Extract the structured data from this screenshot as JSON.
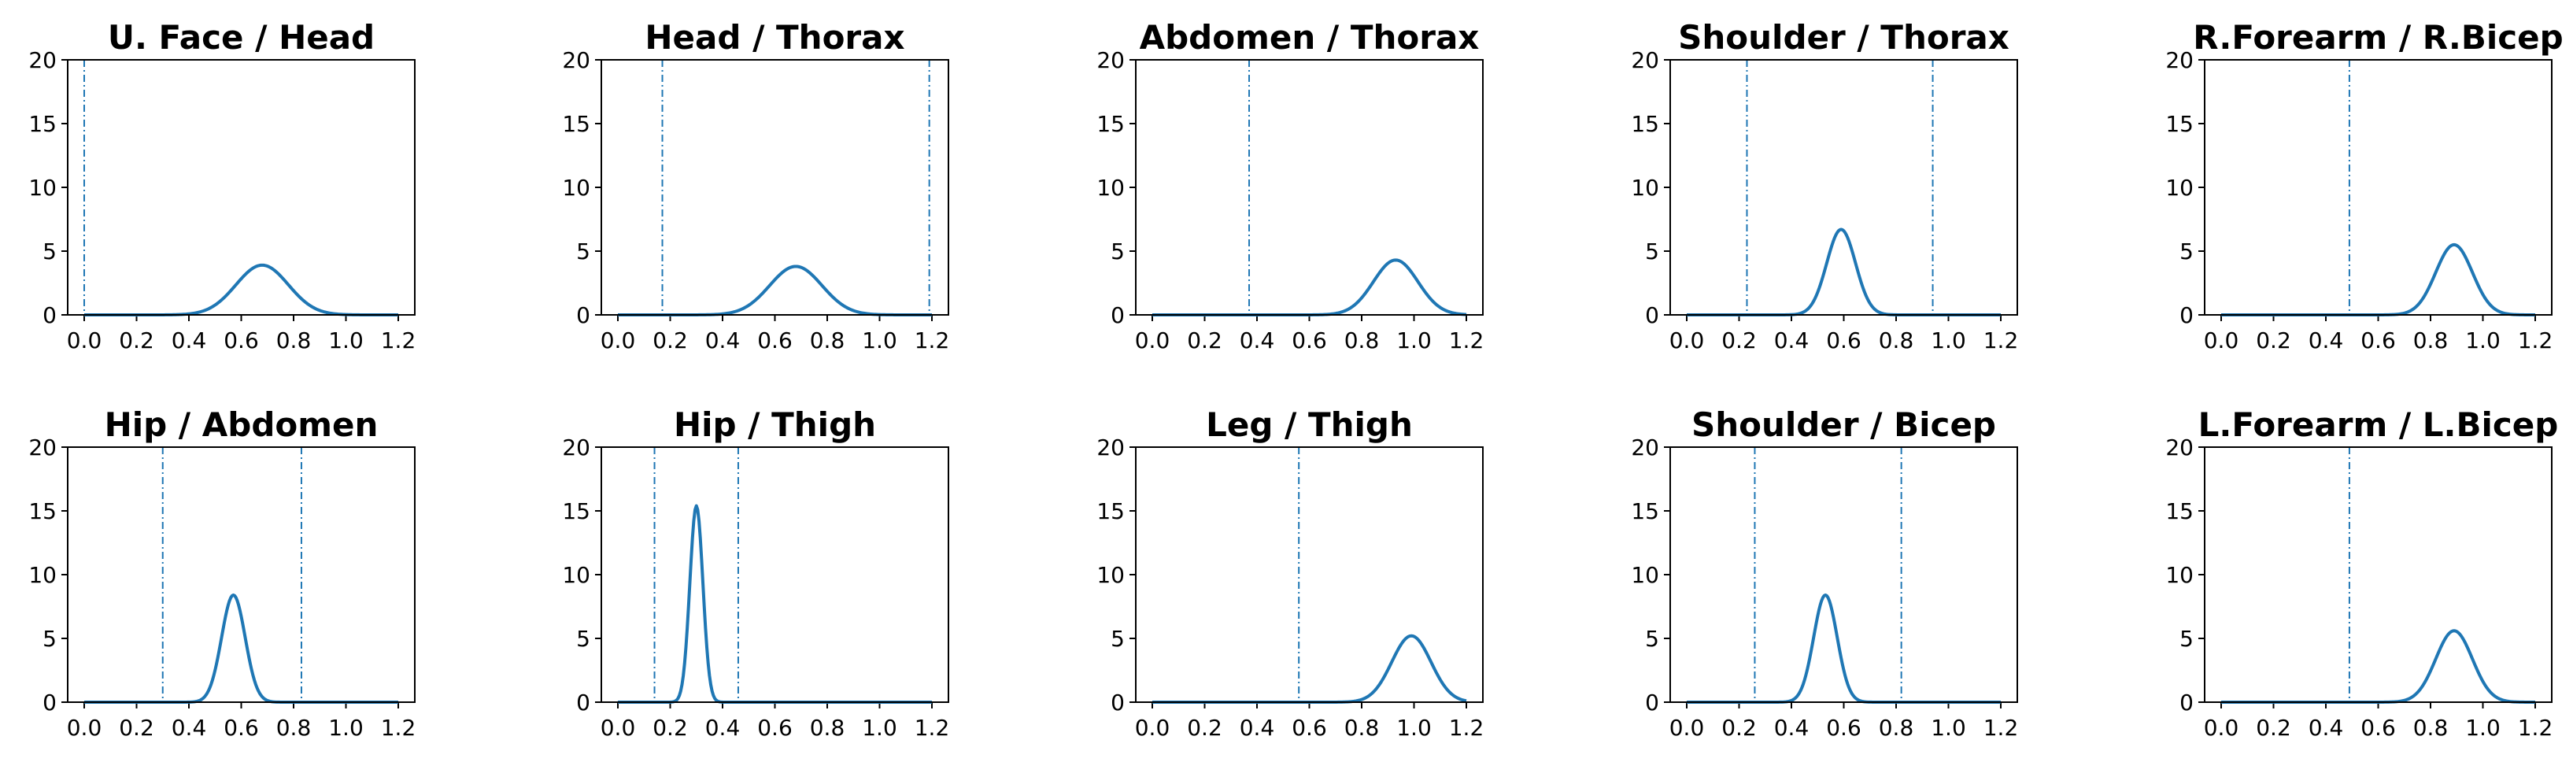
{
  "figure": {
    "background": "#ffffff",
    "curve_color": "#1f77b4",
    "vline_color": "#1f77b4"
  },
  "chart_data": [
    {
      "type": "line",
      "title": "U. Face / Head",
      "xlim": [
        0,
        1.2
      ],
      "ylim": [
        0,
        20
      ],
      "peak_x": 0.68,
      "peak_y": 3.9,
      "sigma": 0.1,
      "vlines": [
        0.0
      ],
      "xticks": [
        0.0,
        0.2,
        0.4,
        0.6,
        0.8,
        1.0,
        1.2
      ],
      "xtick_labels": [
        "0.0",
        "0.2",
        "0.4",
        "0.6",
        "0.8",
        "1.0",
        "1.2"
      ],
      "yticks": [
        0,
        5,
        10,
        15,
        20
      ],
      "ytick_labels": [
        "0",
        "5",
        "10",
        "15",
        "20"
      ]
    },
    {
      "type": "line",
      "title": "Head / Thorax",
      "xlim": [
        0,
        1.2
      ],
      "ylim": [
        0,
        20
      ],
      "peak_x": 0.68,
      "peak_y": 3.8,
      "sigma": 0.1,
      "vlines": [
        0.17,
        1.19
      ],
      "xticks": [
        0.0,
        0.2,
        0.4,
        0.6,
        0.8,
        1.0,
        1.2
      ],
      "xtick_labels": [
        "0.0",
        "0.2",
        "0.4",
        "0.6",
        "0.8",
        "1.0",
        "1.2"
      ],
      "yticks": [
        0,
        5,
        10,
        15,
        20
      ],
      "ytick_labels": [
        "0",
        "5",
        "10",
        "15",
        "20"
      ]
    },
    {
      "type": "line",
      "title": "Abdomen / Thorax",
      "xlim": [
        0,
        1.2
      ],
      "ylim": [
        0,
        20
      ],
      "peak_x": 0.93,
      "peak_y": 4.3,
      "sigma": 0.085,
      "vlines": [
        0.37
      ],
      "xticks": [
        0.0,
        0.2,
        0.4,
        0.6,
        0.8,
        1.0,
        1.2
      ],
      "xtick_labels": [
        "0.0",
        "0.2",
        "0.4",
        "0.6",
        "0.8",
        "1.0",
        "1.2"
      ],
      "yticks": [
        0,
        5,
        10,
        15,
        20
      ],
      "ytick_labels": [
        "0",
        "5",
        "10",
        "15",
        "20"
      ]
    },
    {
      "type": "line",
      "title": "Shoulder / Thorax",
      "xlim": [
        0,
        1.2
      ],
      "ylim": [
        0,
        20
      ],
      "peak_x": 0.59,
      "peak_y": 6.7,
      "sigma": 0.055,
      "vlines": [
        0.23,
        0.94
      ],
      "xticks": [
        0.0,
        0.2,
        0.4,
        0.6,
        0.8,
        1.0,
        1.2
      ],
      "xtick_labels": [
        "0.0",
        "0.2",
        "0.4",
        "0.6",
        "0.8",
        "1.0",
        "1.2"
      ],
      "yticks": [
        0,
        5,
        10,
        15,
        20
      ],
      "ytick_labels": [
        "0",
        "5",
        "10",
        "15",
        "20"
      ]
    },
    {
      "type": "line",
      "title": "R.Forearm / R.Bicep",
      "xlim": [
        0,
        1.2
      ],
      "ylim": [
        0,
        20
      ],
      "peak_x": 0.89,
      "peak_y": 5.5,
      "sigma": 0.07,
      "vlines": [
        0.49
      ],
      "xticks": [
        0.0,
        0.2,
        0.4,
        0.6,
        0.8,
        1.0,
        1.2
      ],
      "xtick_labels": [
        "0.0",
        "0.2",
        "0.4",
        "0.6",
        "0.8",
        "1.0",
        "1.2"
      ],
      "yticks": [
        0,
        5,
        10,
        15,
        20
      ],
      "ytick_labels": [
        "0",
        "5",
        "10",
        "15",
        "20"
      ]
    },
    {
      "type": "line",
      "title": "Hip / Abdomen",
      "xlim": [
        0,
        1.2
      ],
      "ylim": [
        0,
        20
      ],
      "peak_x": 0.57,
      "peak_y": 8.4,
      "sigma": 0.045,
      "vlines": [
        0.3,
        0.83
      ],
      "xticks": [
        0.0,
        0.2,
        0.4,
        0.6,
        0.8,
        1.0,
        1.2
      ],
      "xtick_labels": [
        "0.0",
        "0.2",
        "0.4",
        "0.6",
        "0.8",
        "1.0",
        "1.2"
      ],
      "yticks": [
        0,
        5,
        10,
        15,
        20
      ],
      "ytick_labels": [
        "0",
        "5",
        "10",
        "15",
        "20"
      ]
    },
    {
      "type": "line",
      "title": "Hip / Thigh",
      "xlim": [
        0,
        1.2
      ],
      "ylim": [
        0,
        20
      ],
      "peak_x": 0.3,
      "peak_y": 15.4,
      "sigma": 0.025,
      "vlines": [
        0.14,
        0.46
      ],
      "xticks": [
        0.0,
        0.2,
        0.4,
        0.6,
        0.8,
        1.0,
        1.2
      ],
      "xtick_labels": [
        "0.0",
        "0.2",
        "0.4",
        "0.6",
        "0.8",
        "1.0",
        "1.2"
      ],
      "yticks": [
        0,
        5,
        10,
        15,
        20
      ],
      "ytick_labels": [
        "0",
        "5",
        "10",
        "15",
        "20"
      ]
    },
    {
      "type": "line",
      "title": "Leg / Thigh",
      "xlim": [
        0,
        1.2
      ],
      "ylim": [
        0,
        20
      ],
      "peak_x": 0.99,
      "peak_y": 5.2,
      "sigma": 0.075,
      "vlines": [
        0.56
      ],
      "xticks": [
        0.0,
        0.2,
        0.4,
        0.6,
        0.8,
        1.0,
        1.2
      ],
      "xtick_labels": [
        "0.0",
        "0.2",
        "0.4",
        "0.6",
        "0.8",
        "1.0",
        "1.2"
      ],
      "yticks": [
        0,
        5,
        10,
        15,
        20
      ],
      "ytick_labels": [
        "0",
        "5",
        "10",
        "15",
        "20"
      ]
    },
    {
      "type": "line",
      "title": "Shoulder / Bicep",
      "xlim": [
        0,
        1.2
      ],
      "ylim": [
        0,
        20
      ],
      "peak_x": 0.53,
      "peak_y": 8.4,
      "sigma": 0.045,
      "vlines": [
        0.26,
        0.82
      ],
      "xticks": [
        0.0,
        0.2,
        0.4,
        0.6,
        0.8,
        1.0,
        1.2
      ],
      "xtick_labels": [
        "0.0",
        "0.2",
        "0.4",
        "0.6",
        "0.8",
        "1.0",
        "1.2"
      ],
      "yticks": [
        0,
        5,
        10,
        15,
        20
      ],
      "ytick_labels": [
        "0",
        "5",
        "10",
        "15",
        "20"
      ]
    },
    {
      "type": "line",
      "title": "L.Forearm / L.Bicep",
      "xlim": [
        0,
        1.2
      ],
      "ylim": [
        0,
        20
      ],
      "peak_x": 0.89,
      "peak_y": 5.6,
      "sigma": 0.07,
      "vlines": [
        0.49
      ],
      "xticks": [
        0.0,
        0.2,
        0.4,
        0.6,
        0.8,
        1.0,
        1.2
      ],
      "xtick_labels": [
        "0.0",
        "0.2",
        "0.4",
        "0.6",
        "0.8",
        "1.0",
        "1.2"
      ],
      "yticks": [
        0,
        5,
        10,
        15,
        20
      ],
      "ytick_labels": [
        "0",
        "5",
        "10",
        "15",
        "20"
      ]
    }
  ]
}
